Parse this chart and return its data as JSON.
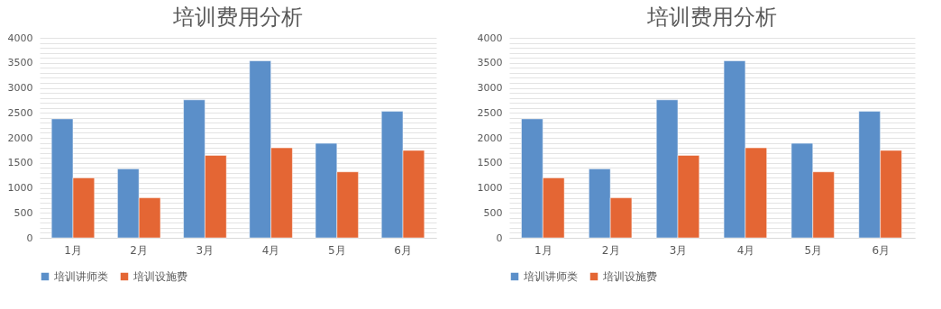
{
  "chart_data": [
    {
      "type": "bar",
      "title": "培训费用分析",
      "categories": [
        "1月",
        "2月",
        "3月",
        "4月",
        "5月",
        "6月"
      ],
      "series": [
        {
          "name": "培训讲师类",
          "color": "#5b8fc9",
          "values": [
            2380,
            1380,
            2760,
            3540,
            1890,
            2530
          ]
        },
        {
          "name": "培训设施费",
          "color": "#e46634",
          "values": [
            1200,
            800,
            1650,
            1800,
            1320,
            1750
          ]
        }
      ],
      "ylim": [
        0,
        4000
      ],
      "yticks": [
        0,
        {
          "value": 100,
          "label": null
        },
        {
          "value": 200,
          "label": null
        },
        {
          "value": 300,
          "label": null
        },
        {
          "value": 400,
          "label": null
        },
        500,
        {
          "value": 600,
          "label": null
        },
        {
          "value": 700,
          "label": null
        },
        {
          "value": 800,
          "label": null
        },
        {
          "value": 900,
          "label": null
        },
        1000,
        {
          "value": 1100,
          "label": null
        },
        {
          "value": 1200,
          "label": null
        },
        {
          "value": 1300,
          "label": null
        },
        {
          "value": 1400,
          "label": null
        },
        1500,
        {
          "value": 1600,
          "label": null
        },
        {
          "value": 1700,
          "label": null
        },
        {
          "value": 1800,
          "label": null
        },
        {
          "value": 1900,
          "label": null
        },
        2000,
        {
          "value": 2100,
          "label": null
        },
        {
          "value": 2200,
          "label": null
        },
        {
          "value": 2300,
          "label": null
        },
        {
          "value": 2400,
          "label": null
        },
        2500,
        {
          "value": 2600,
          "label": null
        },
        {
          "value": 2700,
          "label": null
        },
        {
          "value": 2800,
          "label": null
        },
        {
          "value": 2900,
          "label": null
        },
        3000,
        {
          "value": 3100,
          "label": null
        },
        {
          "value": 3200,
          "label": null
        },
        {
          "value": 3300,
          "label": null
        },
        {
          "value": 3400,
          "label": null
        },
        3500,
        {
          "value": 3600,
          "label": null
        },
        {
          "value": 3700,
          "label": null
        },
        {
          "value": 3800,
          "label": null
        },
        {
          "value": 3900,
          "label": null
        },
        4000
      ],
      "grid": "y",
      "legend": "bottom"
    },
    {
      "type": "bar",
      "title": "培训费用分析",
      "categories": [
        "1月",
        "2月",
        "3月",
        "4月",
        "5月",
        "6月"
      ],
      "series": [
        {
          "name": "培训讲师类",
          "color": "#5b8fc9",
          "values": [
            2380,
            1380,
            2760,
            3540,
            1890,
            2530
          ]
        },
        {
          "name": "培训设施费",
          "color": "#e46634",
          "values": [
            1200,
            800,
            1650,
            1800,
            1320,
            1750
          ]
        }
      ],
      "ylim": [
        0,
        4000
      ],
      "yticks": [
        0,
        {
          "value": 100,
          "label": null
        },
        {
          "value": 200,
          "label": null
        },
        {
          "value": 300,
          "label": null
        },
        {
          "value": 400,
          "label": null
        },
        500,
        {
          "value": 600,
          "label": null
        },
        {
          "value": 700,
          "label": null
        },
        {
          "value": 800,
          "label": null
        },
        {
          "value": 900,
          "label": null
        },
        1000,
        {
          "value": 1100,
          "label": null
        },
        {
          "value": 1200,
          "label": null
        },
        {
          "value": 1300,
          "label": null
        },
        {
          "value": 1400,
          "label": null
        },
        1500,
        {
          "value": 1600,
          "label": null
        },
        {
          "value": 1700,
          "label": null
        },
        {
          "value": 1800,
          "label": null
        },
        {
          "value": 1900,
          "label": null
        },
        2000,
        {
          "value": 2100,
          "label": null
        },
        {
          "value": 2200,
          "label": null
        },
        {
          "value": 2300,
          "label": null
        },
        {
          "value": 2400,
          "label": null
        },
        2500,
        {
          "value": 2600,
          "label": null
        },
        {
          "value": 2700,
          "label": null
        },
        {
          "value": 2800,
          "label": null
        },
        {
          "value": 2900,
          "label": null
        },
        3000,
        {
          "value": 3100,
          "label": null
        },
        {
          "value": 3200,
          "label": null
        },
        {
          "value": 3300,
          "label": null
        },
        {
          "value": 3400,
          "label": null
        },
        3500,
        {
          "value": 3600,
          "label": null
        },
        {
          "value": 3700,
          "label": null
        },
        {
          "value": 3800,
          "label": null
        },
        {
          "value": 3900,
          "label": null
        },
        4000
      ],
      "grid": "y",
      "legend": "bottom"
    }
  ]
}
